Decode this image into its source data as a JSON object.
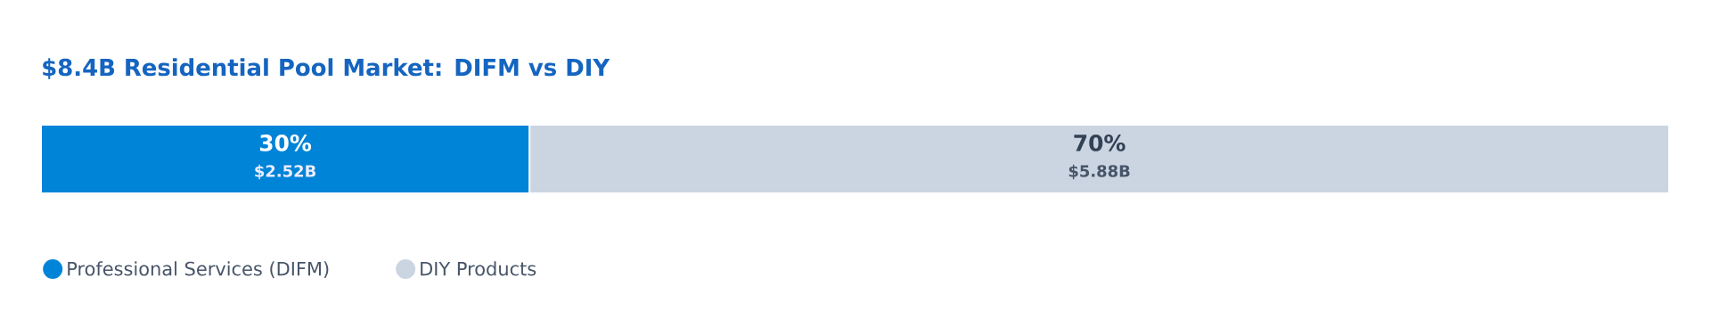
{
  "chart_data": {
    "type": "bar",
    "orientation": "horizontal",
    "stacked": true,
    "title": "$8.4B Residential Pool Market: DIFM vs DIY",
    "categories": [
      null
    ],
    "legend": "bottom left",
    "series": [
      {
        "name": "Professional Services (DIFM)",
        "color": "#0084d8",
        "values": [
          30
        ],
        "value_labels": [
          "30%"
        ]
      },
      {
        "name": "DIY Products",
        "color": "#cbd5e1",
        "values": [
          70
        ],
        "value_labels": [
          "70%"
        ]
      }
    ],
    "annotations": [
      "$2.52B",
      "$5.88B"
    ]
  }
}
